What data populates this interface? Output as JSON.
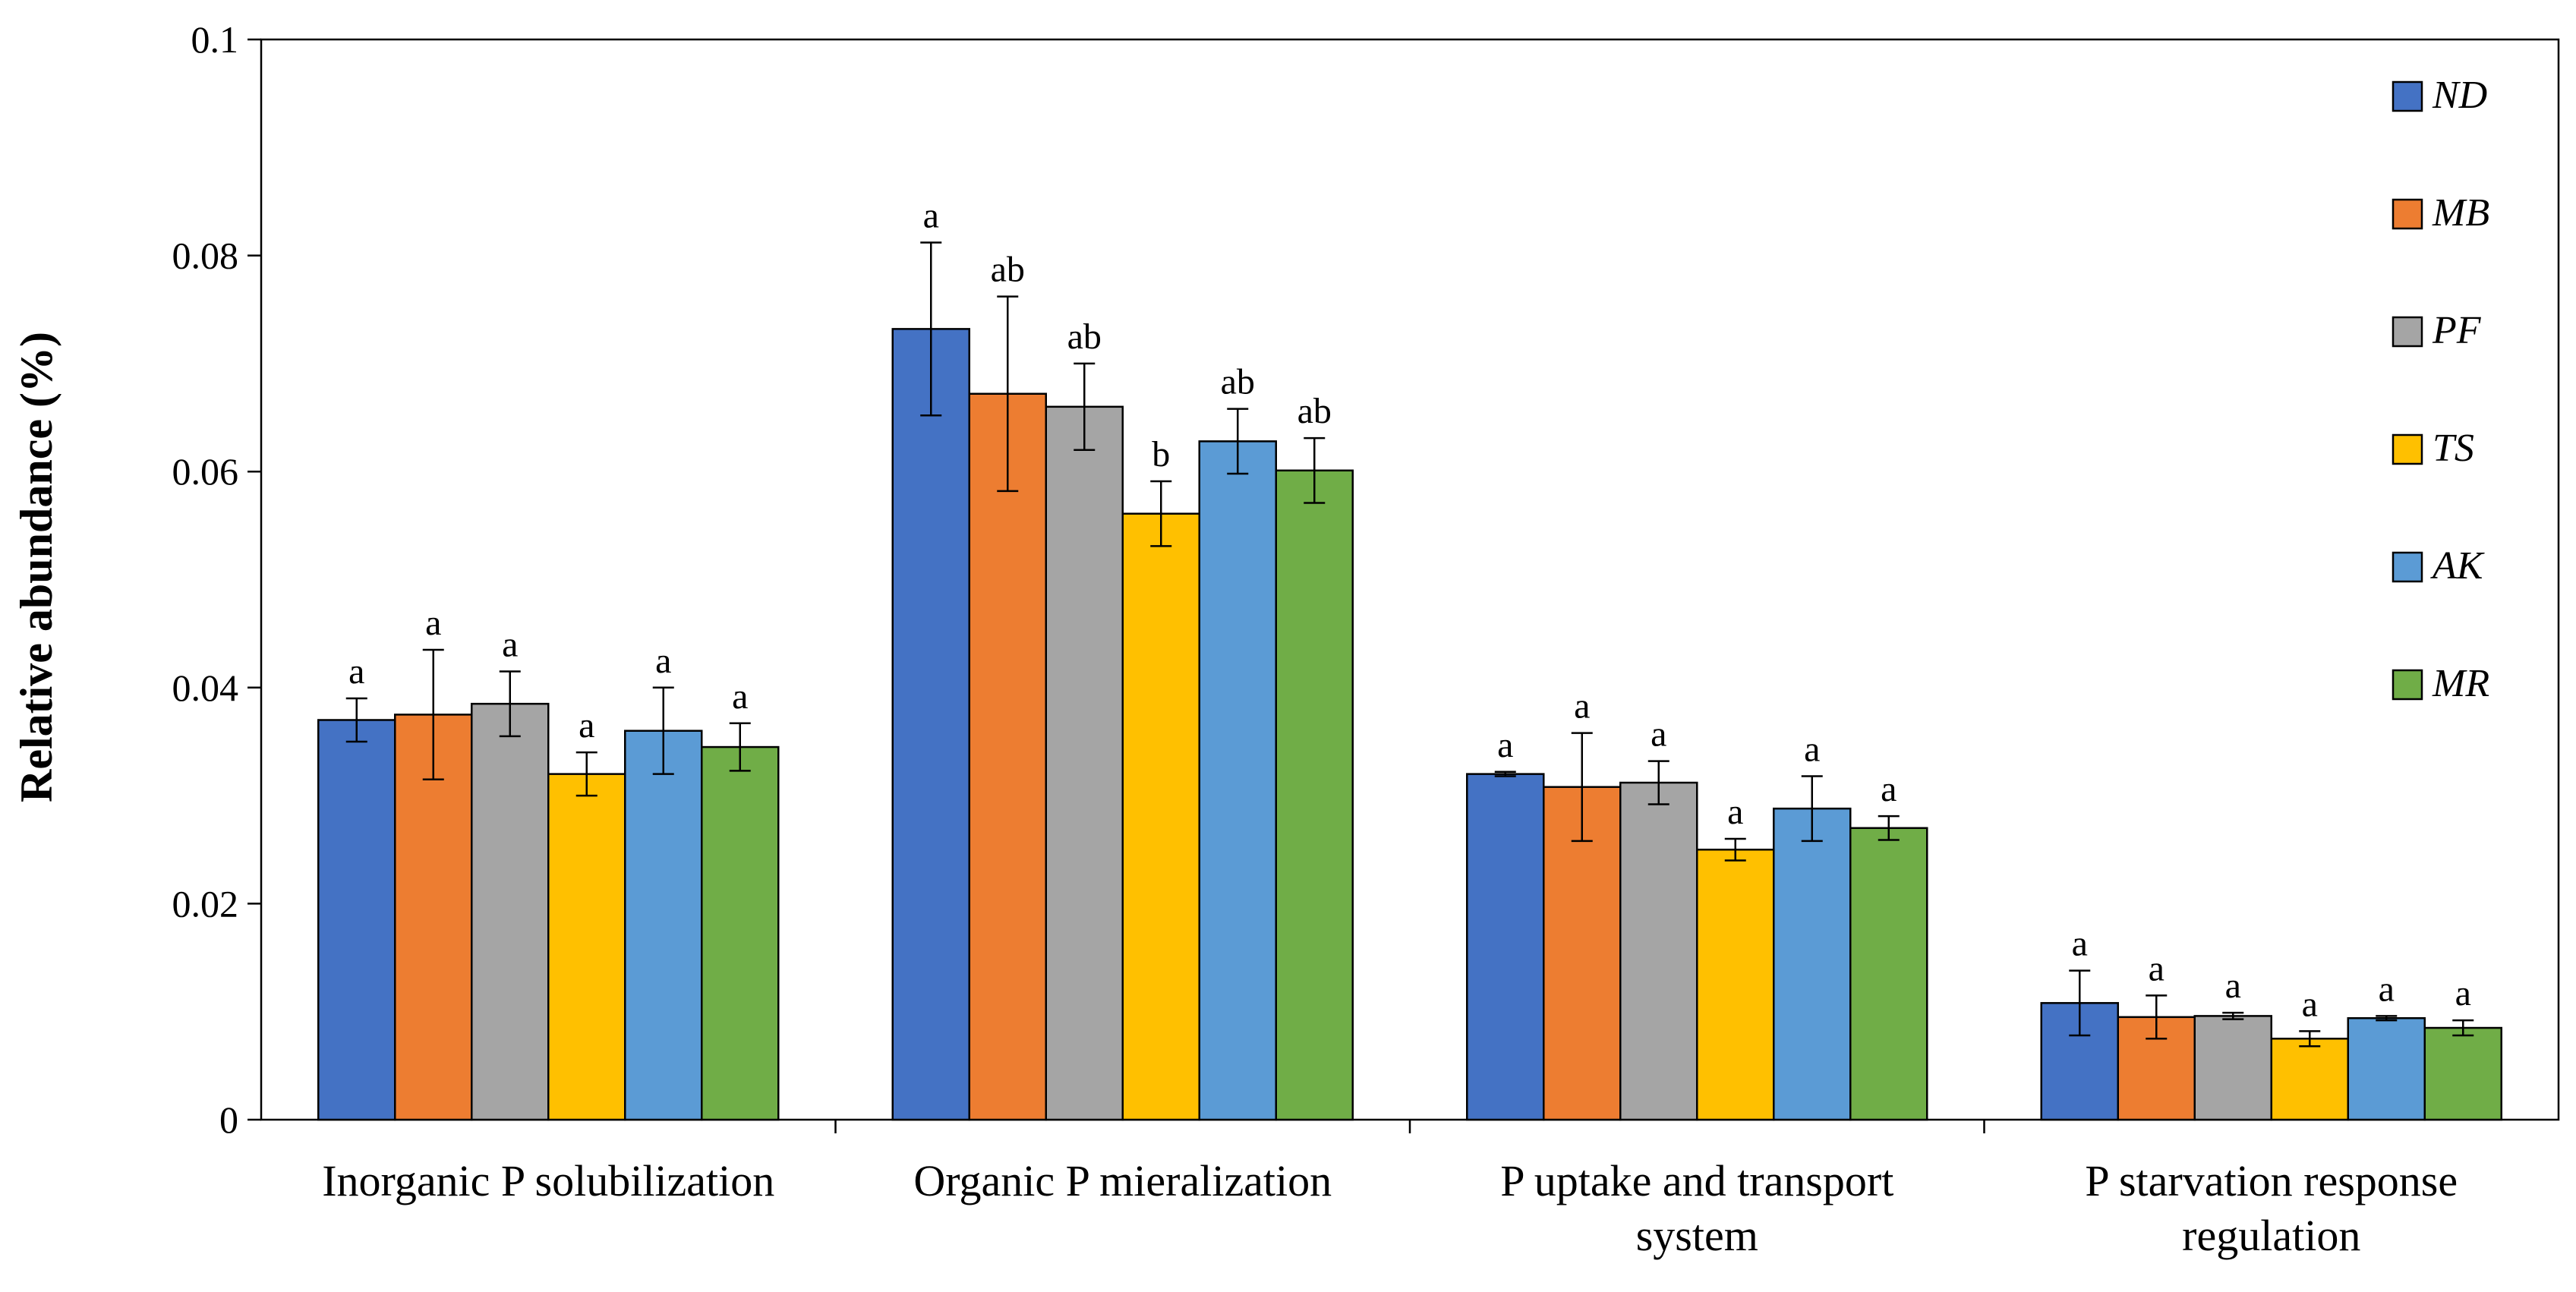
{
  "chart_data": {
    "type": "bar",
    "title": "",
    "xlabel": "",
    "ylabel": "Relative abundance (%)",
    "ylim": [
      0,
      0.1
    ],
    "yticks": [
      "0",
      "0.02",
      "0.04",
      "0.06",
      "0.08",
      "0.1"
    ],
    "ytick_values": [
      0,
      0.02,
      0.04,
      0.06,
      0.08,
      0.1
    ],
    "legend_position": "top-right",
    "categories": [
      [
        "Inorganic P solubilization"
      ],
      [
        "Organic P mieralization"
      ],
      [
        "P uptake and transport",
        "system"
      ],
      [
        "P starvation response",
        "regulation"
      ]
    ],
    "series": [
      {
        "name": "ND",
        "color": "#4472C4",
        "values": [
          0.037,
          0.0732,
          0.032,
          0.0108
        ],
        "errors": [
          0.002,
          0.008,
          0.0002,
          0.003
        ],
        "labels": [
          "a",
          "a",
          "a",
          "a"
        ]
      },
      {
        "name": "MB",
        "color": "#ED7D31",
        "values": [
          0.0375,
          0.0672,
          0.0308,
          0.0095
        ],
        "errors": [
          0.006,
          0.009,
          0.005,
          0.002
        ],
        "labels": [
          "a",
          "ab",
          "a",
          "a"
        ]
      },
      {
        "name": "PF",
        "color": "#A5A5A5",
        "values": [
          0.0385,
          0.066,
          0.0312,
          0.0096
        ],
        "errors": [
          0.003,
          0.004,
          0.002,
          0.0003
        ],
        "labels": [
          "a",
          "ab",
          "a",
          "a"
        ]
      },
      {
        "name": "TS",
        "color": "#FFC000",
        "values": [
          0.032,
          0.0561,
          0.025,
          0.0075
        ],
        "errors": [
          0.002,
          0.003,
          0.001,
          0.0007
        ],
        "labels": [
          "a",
          "b",
          "a",
          "a"
        ]
      },
      {
        "name": "AK",
        "color": "#5B9BD5",
        "values": [
          0.036,
          0.0628,
          0.0288,
          0.0094
        ],
        "errors": [
          0.004,
          0.003,
          0.003,
          0.0002
        ],
        "labels": [
          "a",
          "ab",
          "a",
          "a"
        ]
      },
      {
        "name": "MR",
        "color": "#70AD47",
        "values": [
          0.0345,
          0.0601,
          0.027,
          0.0085
        ],
        "errors": [
          0.0022,
          0.003,
          0.0011,
          0.0007
        ],
        "labels": [
          "a",
          "ab",
          "a",
          "a"
        ]
      }
    ]
  }
}
